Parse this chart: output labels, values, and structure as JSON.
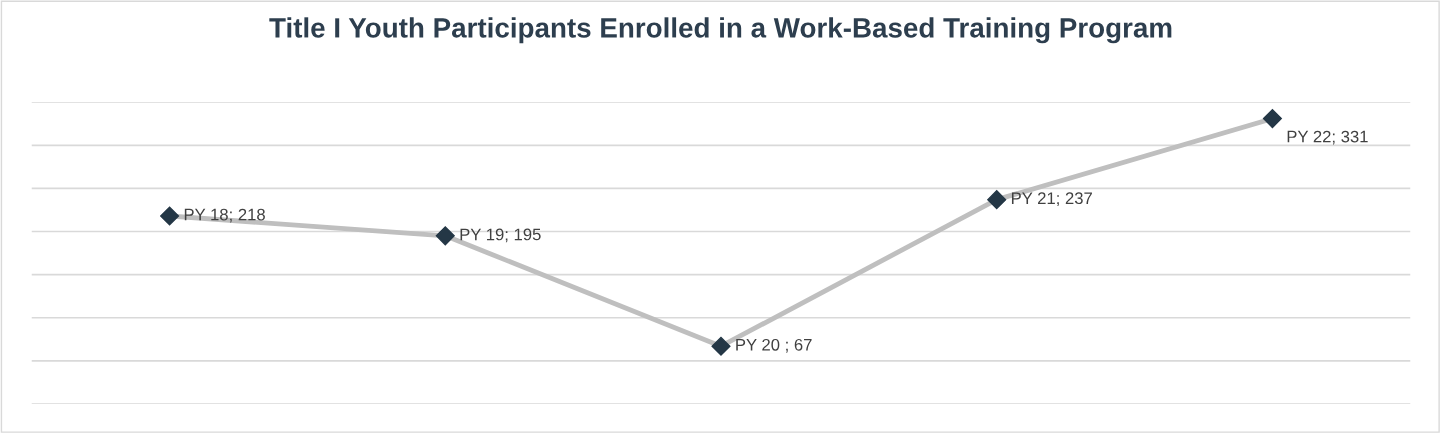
{
  "chart_data": {
    "type": "line",
    "title": "Title I Youth Participants Enrolled in a Work-Based Training Program",
    "categories": [
      null,
      null,
      null,
      null,
      null
    ],
    "series": [
      {
        "color": "#bfbfbf",
        "colors": [
          "#243746",
          "#243746",
          "#243746",
          "#243746",
          "#243746"
        ],
        "values": [
          218,
          195,
          67,
          237,
          331
        ],
        "value_labels": [
          "PY 18; 218",
          "PY 19; 195",
          "PY 20 ; 67",
          "PY 21; 237",
          "PY 22; 331"
        ]
      }
    ],
    "ylim": [
      0,
      350
    ],
    "yticks": [
      {
        "value": 0,
        "label": null
      },
      {
        "value": 50,
        "label": null
      },
      {
        "value": 100,
        "label": null
      },
      {
        "value": 150,
        "label": null
      },
      {
        "value": 200,
        "label": null
      },
      {
        "value": 250,
        "label": null
      },
      {
        "value": 300,
        "label": null
      },
      {
        "value": 350,
        "label": null
      }
    ],
    "grid": "y",
    "marker": "diamond",
    "line_style": "solid"
  }
}
